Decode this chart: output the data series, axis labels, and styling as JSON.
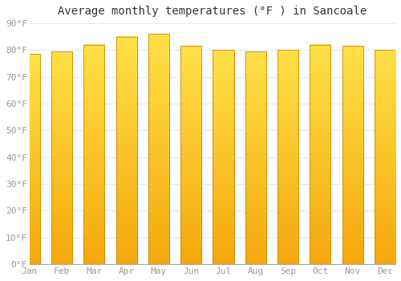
{
  "title": "Average monthly temperatures (°F ) in Sancoale",
  "months": [
    "Jan",
    "Feb",
    "Mar",
    "Apr",
    "May",
    "Jun",
    "Jul",
    "Aug",
    "Sep",
    "Oct",
    "Nov",
    "Dec"
  ],
  "temperatures": [
    78.5,
    79.5,
    82,
    85,
    86,
    81.5,
    80,
    79.5,
    80,
    82,
    81.5,
    80
  ],
  "bar_color_top": "#FFD84A",
  "bar_color_bottom": "#F5A800",
  "bar_edge_color": "#CC8800",
  "ylim": [
    0,
    90
  ],
  "yticks": [
    0,
    10,
    20,
    30,
    40,
    50,
    60,
    70,
    80,
    90
  ],
  "ytick_labels": [
    "0°F",
    "10°F",
    "20°F",
    "30°F",
    "40°F",
    "50°F",
    "60°F",
    "70°F",
    "80°F",
    "90°F"
  ],
  "background_color": "#ffffff",
  "plot_bg_color": "#ffffff",
  "title_fontsize": 10,
  "tick_fontsize": 8,
  "grid_color": "#e8e8e8",
  "title_color": "#333333",
  "tick_color": "#999999",
  "bar_width": 0.65
}
